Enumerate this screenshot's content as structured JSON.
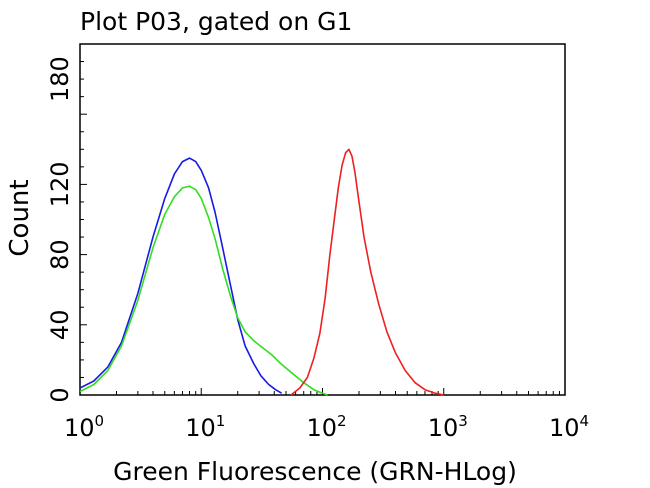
{
  "chart_data": {
    "type": "line",
    "title": "Plot P03, gated on G1",
    "xlabel": "Green Fluorescence (GRN-HLog)",
    "ylabel": "Count",
    "x_scale": "log",
    "xlim": [
      1,
      10000
    ],
    "ylim": [
      0,
      200
    ],
    "x_ticks": [
      {
        "base": "10",
        "exp": "0",
        "value": 1
      },
      {
        "base": "10",
        "exp": "1",
        "value": 10
      },
      {
        "base": "10",
        "exp": "2",
        "value": 100
      },
      {
        "base": "10",
        "exp": "3",
        "value": 1000
      },
      {
        "base": "10",
        "exp": "4",
        "value": 10000
      }
    ],
    "y_ticks": [
      "0",
      "40",
      "80",
      "120",
      "180"
    ],
    "y_tick_values": [
      0,
      40,
      80,
      120,
      180
    ],
    "grid": false,
    "series": [
      {
        "color": "#1a1ae6",
        "x": [
          1.0,
          1.3,
          1.7,
          2.2,
          3.0,
          4.0,
          5.0,
          6.0,
          7.0,
          8.0,
          9.0,
          10.0,
          11.5,
          13.0,
          15.0,
          17.5,
          20.0,
          23.0,
          27.0,
          31.0,
          36.0,
          41.0,
          46.0
        ],
        "y": [
          4,
          8,
          16,
          30,
          58,
          90,
          112,
          126,
          133,
          135,
          133,
          128,
          118,
          104,
          84,
          62,
          43,
          28,
          18,
          11,
          6,
          3,
          1
        ]
      },
      {
        "color": "#33dd22",
        "x": [
          1.0,
          1.3,
          1.7,
          2.2,
          3.0,
          4.0,
          5.0,
          6.0,
          7.0,
          8.0,
          9.0,
          10.0,
          11.5,
          13.0,
          15.0,
          17.5,
          20.0,
          23.0,
          27.0,
          32.0,
          38.0,
          45.0,
          55.0,
          70.0,
          85.0,
          100.0,
          110.0
        ],
        "y": [
          2,
          6,
          14,
          28,
          54,
          84,
          103,
          113,
          118,
          119,
          117,
          112,
          101,
          89,
          72,
          56,
          44,
          36,
          31,
          27,
          23,
          18,
          13,
          7,
          3,
          1,
          0
        ]
      },
      {
        "color": "#ee2020",
        "x": [
          55,
          65,
          75,
          85,
          95,
          105,
          115,
          125,
          135,
          145,
          155,
          165,
          175,
          185,
          200,
          220,
          250,
          290,
          340,
          400,
          480,
          580,
          700,
          850,
          1000
        ],
        "y": [
          0,
          4,
          10,
          21,
          35,
          55,
          80,
          100,
          118,
          131,
          138,
          140,
          136,
          127,
          110,
          90,
          70,
          52,
          36,
          24,
          14,
          7,
          3,
          1,
          0
        ]
      }
    ]
  }
}
